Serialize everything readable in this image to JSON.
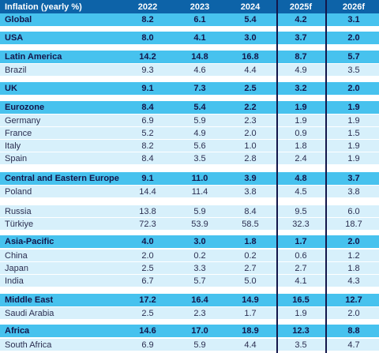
{
  "table": {
    "columns": [
      "Inflation (yearly %)",
      "2022",
      "2023",
      "2024",
      "2025f",
      "2026f"
    ],
    "rows": [
      {
        "kind": "region",
        "label": "Global",
        "values": [
          "8.2",
          "6.1",
          "5.4",
          "4.2",
          "3.1"
        ]
      },
      {
        "kind": "region",
        "label": "USA",
        "values": [
          "8.0",
          "4.1",
          "3.0",
          "3.7",
          "2.0"
        ]
      },
      {
        "kind": "region",
        "label": "Latin America",
        "values": [
          "14.2",
          "14.8",
          "16.8",
          "8.7",
          "5.7"
        ]
      },
      {
        "kind": "country",
        "label": "Brazil",
        "values": [
          "9.3",
          "4.6",
          "4.4",
          "4.9",
          "3.5"
        ]
      },
      {
        "kind": "region",
        "label": "UK",
        "values": [
          "9.1",
          "7.3",
          "2.5",
          "3.2",
          "2.0"
        ]
      },
      {
        "kind": "region",
        "label": "Eurozone",
        "values": [
          "8.4",
          "5.4",
          "2.2",
          "1.9",
          "1.9"
        ]
      },
      {
        "kind": "country",
        "label": "Germany",
        "values": [
          "6.9",
          "5.9",
          "2.3",
          "1.9",
          "1.9"
        ]
      },
      {
        "kind": "country",
        "label": "France",
        "values": [
          "5.2",
          "4.9",
          "2.0",
          "0.9",
          "1.5"
        ]
      },
      {
        "kind": "country",
        "label": "Italy",
        "values": [
          "8.2",
          "5.6",
          "1.0",
          "1.8",
          "1.9"
        ]
      },
      {
        "kind": "country",
        "label": "Spain",
        "values": [
          "8.4",
          "3.5",
          "2.8",
          "2.4",
          "1.9"
        ]
      },
      {
        "kind": "region",
        "label": "Central and Eastern Europe",
        "values": [
          "9.1",
          "11.0",
          "3.9",
          "4.8",
          "3.7"
        ]
      },
      {
        "kind": "country",
        "label": "Poland",
        "values": [
          "14.4",
          "11.4",
          "3.8",
          "4.5",
          "3.8"
        ]
      },
      {
        "kind": "country",
        "label": "Russia",
        "values": [
          "13.8",
          "5.9",
          "8.4",
          "9.5",
          "6.0"
        ]
      },
      {
        "kind": "country",
        "label": "Türkiye",
        "values": [
          "72.3",
          "53.9",
          "58.5",
          "32.3",
          "18.7"
        ]
      },
      {
        "kind": "region",
        "label": "Asia-Pacific",
        "values": [
          "4.0",
          "3.0",
          "1.8",
          "1.7",
          "2.0"
        ]
      },
      {
        "kind": "country",
        "label": "China",
        "values": [
          "2.0",
          "0.2",
          "0.2",
          "0.6",
          "1.2"
        ]
      },
      {
        "kind": "country",
        "label": "Japan",
        "values": [
          "2.5",
          "3.3",
          "2.7",
          "2.7",
          "1.8"
        ]
      },
      {
        "kind": "country",
        "label": "India",
        "values": [
          "6.7",
          "5.7",
          "5.0",
          "4.1",
          "4.3"
        ]
      },
      {
        "kind": "region",
        "label": "Middle East",
        "values": [
          "17.2",
          "16.4",
          "14.9",
          "16.5",
          "12.7"
        ]
      },
      {
        "kind": "country",
        "label": "Saudi Arabia",
        "values": [
          "2.5",
          "2.3",
          "1.7",
          "1.9",
          "2.0"
        ]
      },
      {
        "kind": "region",
        "label": "Africa",
        "values": [
          "14.6",
          "17.0",
          "18.9",
          "12.3",
          "8.8"
        ]
      },
      {
        "kind": "country",
        "label": "South Africa",
        "values": [
          "6.9",
          "5.9",
          "4.4",
          "3.5",
          "4.7"
        ]
      }
    ]
  },
  "colors": {
    "header": "#0d63a8",
    "region": "#47c2ee",
    "country": "#d7f0fb",
    "divider": "#13164a"
  }
}
